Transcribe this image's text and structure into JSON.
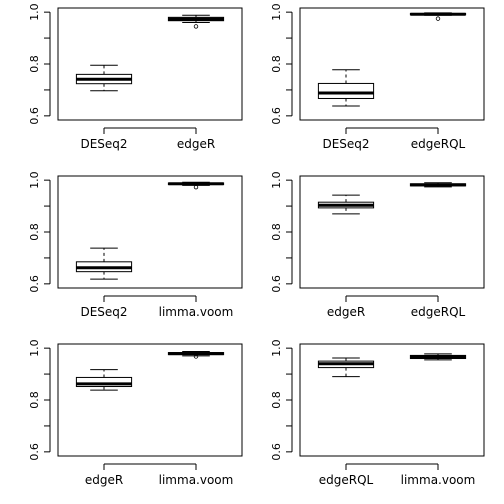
{
  "chart_data": [
    {
      "type": "box",
      "categories": [
        "DESeq2",
        "edgeR"
      ],
      "yticks": [
        "0.6",
        "0.8",
        "1.0"
      ],
      "ylim": [
        0.6,
        1.0
      ],
      "series": [
        {
          "category": "DESeq2",
          "min": 0.697,
          "q1": 0.724,
          "median": 0.741,
          "q3": 0.76,
          "max": 0.795,
          "outliers": []
        },
        {
          "category": "edgeR",
          "min": 0.96,
          "q1": 0.967,
          "median": 0.973,
          "q3": 0.98,
          "max": 0.988,
          "outliers": [
            0.945
          ]
        }
      ]
    },
    {
      "type": "box",
      "categories": [
        "DESeq2",
        "edgeRQL"
      ],
      "yticks": [
        "0.6",
        "0.8",
        "1.0"
      ],
      "ylim": [
        0.6,
        1.0
      ],
      "series": [
        {
          "category": "DESeq2",
          "min": 0.638,
          "q1": 0.667,
          "median": 0.688,
          "q3": 0.725,
          "max": 0.778,
          "outliers": []
        },
        {
          "category": "edgeRQL",
          "min": 0.988,
          "q1": 0.99,
          "median": 0.992,
          "q3": 0.995,
          "max": 0.997,
          "outliers": [
            0.975
          ]
        }
      ]
    },
    {
      "type": "box",
      "categories": [
        "DESeq2",
        "limma.voom"
      ],
      "yticks": [
        "0.6",
        "0.8",
        "1.0"
      ],
      "ylim": [
        0.6,
        1.0
      ],
      "series": [
        {
          "category": "DESeq2",
          "min": 0.618,
          "q1": 0.647,
          "median": 0.662,
          "q3": 0.685,
          "max": 0.738,
          "outliers": []
        },
        {
          "category": "limma.voom",
          "min": 0.98,
          "q1": 0.983,
          "median": 0.986,
          "q3": 0.989,
          "max": 0.992,
          "outliers": [
            0.973
          ]
        }
      ]
    },
    {
      "type": "box",
      "categories": [
        "edgeR",
        "edgeRQL"
      ],
      "yticks": [
        "0.6",
        "0.8",
        "1.0"
      ],
      "ylim": [
        0.6,
        1.0
      ],
      "series": [
        {
          "category": "edgeR",
          "min": 0.87,
          "q1": 0.893,
          "median": 0.903,
          "q3": 0.915,
          "max": 0.942,
          "outliers": []
        },
        {
          "category": "edgeRQL",
          "min": 0.974,
          "q1": 0.978,
          "median": 0.982,
          "q3": 0.986,
          "max": 0.99,
          "outliers": []
        }
      ]
    },
    {
      "type": "box",
      "categories": [
        "edgeR",
        "limma.voom"
      ],
      "yticks": [
        "0.6",
        "0.8",
        "1.0"
      ],
      "ylim": [
        0.6,
        1.0
      ],
      "series": [
        {
          "category": "edgeR",
          "min": 0.838,
          "q1": 0.852,
          "median": 0.862,
          "q3": 0.887,
          "max": 0.917,
          "outliers": []
        },
        {
          "category": "limma.voom",
          "min": 0.97,
          "q1": 0.975,
          "median": 0.979,
          "q3": 0.983,
          "max": 0.987,
          "outliers": [
            0.968
          ]
        }
      ]
    },
    {
      "type": "box",
      "categories": [
        "edgeRQL",
        "limma.voom"
      ],
      "yticks": [
        "0.6",
        "0.8",
        "1.0"
      ],
      "ylim": [
        0.6,
        1.0
      ],
      "series": [
        {
          "category": "edgeRQL",
          "min": 0.89,
          "q1": 0.925,
          "median": 0.94,
          "q3": 0.95,
          "max": 0.962,
          "outliers": []
        },
        {
          "category": "limma.voom",
          "min": 0.955,
          "q1": 0.96,
          "median": 0.966,
          "q3": 0.972,
          "max": 0.978,
          "outliers": []
        }
      ]
    }
  ]
}
